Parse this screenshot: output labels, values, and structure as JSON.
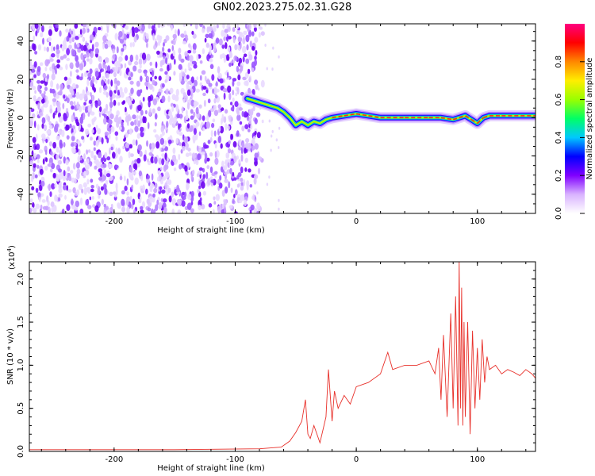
{
  "title": "GN02.2023.275.02.31.G28",
  "chart_data": [
    {
      "type": "heatmap",
      "name": "spectrogram",
      "xlabel": "Height of straight line (km)",
      "ylabel": "Frequency (Hz)",
      "xlim": [
        -270,
        148
      ],
      "ylim": [
        -50,
        49
      ],
      "xticks": [
        -200,
        -100,
        0,
        100
      ],
      "yticks": [
        -40,
        -20,
        0,
        20,
        40
      ],
      "noise_region_x": [
        -270,
        -82
      ],
      "trace": {
        "x": [
          -90,
          -80,
          -75,
          -70,
          -65,
          -60,
          -55,
          -50,
          -45,
          -40,
          -35,
          -30,
          -25,
          -20,
          -10,
          0,
          10,
          20,
          40,
          60,
          70,
          80,
          90,
          95,
          100,
          105,
          110,
          120,
          148
        ],
        "y": [
          10,
          8,
          7,
          6,
          5,
          3,
          0,
          -4,
          -2,
          -4,
          -2,
          -3,
          -1,
          0,
          1,
          2,
          1,
          0,
          0,
          0,
          0,
          -1,
          1,
          -1,
          -3,
          0,
          1,
          1,
          1
        ]
      },
      "colorbar": {
        "label": "Normalized spectral amplitude",
        "range": [
          0.0,
          1.0
        ],
        "ticks": [
          "0.0",
          "0.2",
          "0.4",
          "0.6",
          "0.8"
        ],
        "colors": [
          "#ffffff",
          "#d9b3ff",
          "#8000ff",
          "#0000ff",
          "#00c8ff",
          "#00ff66",
          "#99ff00",
          "#ffee00",
          "#ff8800",
          "#ff0000",
          "#ff0080"
        ]
      }
    },
    {
      "type": "line",
      "name": "snr",
      "xlabel": "Height of straight line (km)",
      "ylabel": "SNR (10 * v/v)",
      "scale_label": "(x10",
      "scale_exp": "4",
      "scale_close": ")",
      "xlim": [
        -270,
        148
      ],
      "ylim": [
        0,
        2.2
      ],
      "xticks": [
        -200,
        -100,
        0,
        100
      ],
      "yticks": [
        "0.0",
        "0.5",
        "1.0",
        "1.5",
        "2.0"
      ],
      "color": "#e8302a",
      "x": [
        -270,
        -150,
        -80,
        -62,
        -55,
        -50,
        -45,
        -42,
        -40,
        -38,
        -35,
        -30,
        -25,
        -23,
        -20,
        -18,
        -15,
        -10,
        -5,
        0,
        10,
        20,
        26,
        30,
        40,
        50,
        60,
        65,
        68,
        70,
        72,
        75,
        78,
        80,
        82,
        84,
        85,
        86,
        87,
        88,
        89,
        90,
        92,
        94,
        96,
        98,
        100,
        102,
        104,
        106,
        108,
        110,
        115,
        120,
        125,
        130,
        135,
        140,
        145,
        148
      ],
      "y": [
        0.02,
        0.02,
        0.03,
        0.05,
        0.12,
        0.22,
        0.35,
        0.6,
        0.2,
        0.15,
        0.3,
        0.1,
        0.4,
        0.95,
        0.35,
        0.7,
        0.5,
        0.65,
        0.55,
        0.75,
        0.8,
        0.9,
        1.15,
        0.95,
        1.0,
        1.0,
        1.05,
        0.9,
        1.2,
        0.6,
        1.35,
        0.4,
        1.6,
        0.5,
        1.8,
        0.3,
        2.2,
        0.5,
        1.9,
        0.3,
        1.5,
        0.4,
        1.5,
        0.2,
        1.4,
        0.5,
        1.2,
        0.6,
        1.3,
        0.8,
        1.1,
        0.95,
        1.0,
        0.9,
        0.95,
        0.92,
        0.88,
        0.95,
        0.9,
        0.85
      ]
    }
  ]
}
